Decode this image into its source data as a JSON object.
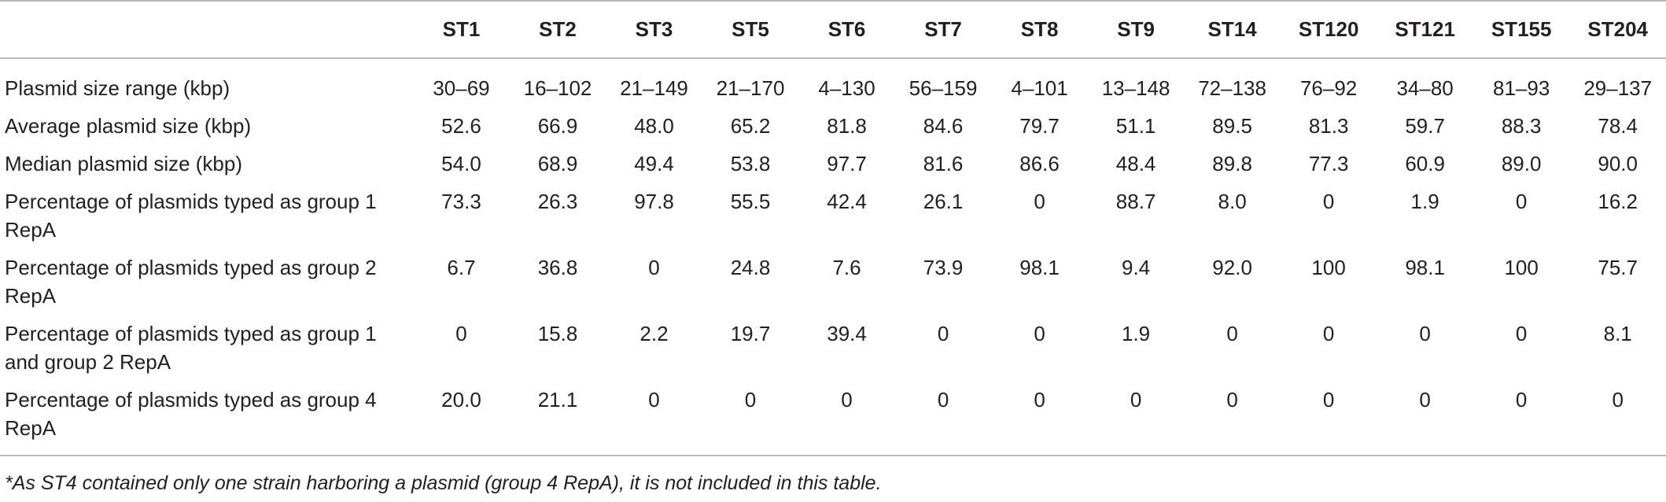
{
  "table": {
    "header": [
      "",
      "ST1",
      "ST2",
      "ST3",
      "ST5",
      "ST6",
      "ST7",
      "ST8",
      "ST9",
      "ST14",
      "ST120",
      "ST121",
      "ST155",
      "ST204"
    ],
    "rows": [
      {
        "label": "Plasmid size range (kbp)",
        "values": [
          "30–69",
          "16–102",
          "21–149",
          "21–170",
          "4–130",
          "56–159",
          "4–101",
          "13–148",
          "72–138",
          "76–92",
          "34–80",
          "81–93",
          "29–137"
        ]
      },
      {
        "label": "Average plasmid size (kbp)",
        "values": [
          "52.6",
          "66.9",
          "48.0",
          "65.2",
          "81.8",
          "84.6",
          "79.7",
          "51.1",
          "89.5",
          "81.3",
          "59.7",
          "88.3",
          "78.4"
        ]
      },
      {
        "label": "Median plasmid size (kbp)",
        "values": [
          "54.0",
          "68.9",
          "49.4",
          "53.8",
          "97.7",
          "81.6",
          "86.6",
          "48.4",
          "89.8",
          "77.3",
          "60.9",
          "89.0",
          "90.0"
        ]
      },
      {
        "label": "Percentage of plasmids typed as group 1 RepA",
        "values": [
          "73.3",
          "26.3",
          "97.8",
          "55.5",
          "42.4",
          "26.1",
          "0",
          "88.7",
          "8.0",
          "0",
          "1.9",
          "0",
          "16.2"
        ]
      },
      {
        "label": "Percentage of plasmids typed as group 2 RepA",
        "values": [
          "6.7",
          "36.8",
          "0",
          "24.8",
          "7.6",
          "73.9",
          "98.1",
          "9.4",
          "92.0",
          "100",
          "98.1",
          "100",
          "75.7"
        ]
      },
      {
        "label": "Percentage of plasmids typed as group 1 and group 2 RepA",
        "values": [
          "0",
          "15.8",
          "2.2",
          "19.7",
          "39.4",
          "0",
          "0",
          "1.9",
          "0",
          "0",
          "0",
          "0",
          "8.1"
        ]
      },
      {
        "label": "Percentage of plasmids typed as group 4 RepA",
        "values": [
          "20.0",
          "21.1",
          "0",
          "0",
          "0",
          "0",
          "0",
          "0",
          "0",
          "0",
          "0",
          "0",
          "0"
        ]
      }
    ]
  },
  "footnote": "*As ST4 contained only one strain harboring a plasmid (group 4 RepA), it is not included in this table."
}
